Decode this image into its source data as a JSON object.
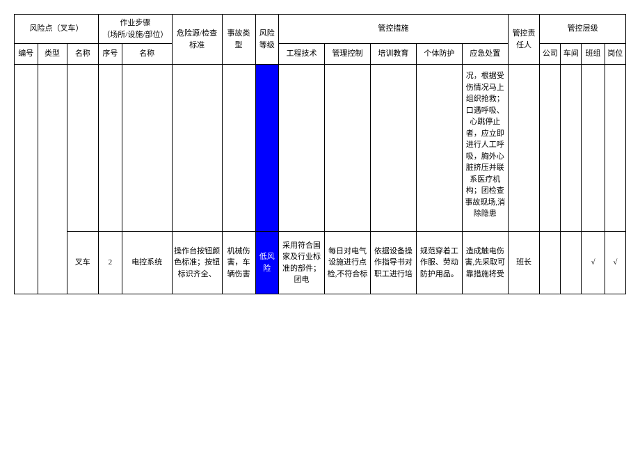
{
  "headers": {
    "riskPoint": "风险点（叉车）",
    "step": "作业步骤\n（场所/设施/部位）",
    "hazard": "危险源/检查标准",
    "accident": "事故类型",
    "riskLevel": "风险等级",
    "controls": "管控措施",
    "responsible": "管控责任人",
    "controlLevel": "管控层级",
    "no": "编号",
    "type": "类型",
    "name": "名称",
    "stepNo": "序号",
    "stepName": "名称",
    "eng": "工程技术",
    "mgmt": "管理控制",
    "train": "培训教育",
    "ppe": "个体防护",
    "emerg": "应急处置",
    "company": "公司",
    "workshop": "车间",
    "team": "班组",
    "post": "岗位"
  },
  "row1": {
    "emerg": "况，根据受伤情况马上组织抢救；口遇呼吸、心跳停止者，应立即进行人工呼吸，胸外心脏挤压并联系医疗机构；团检查事故现场,消除隐患"
  },
  "row2": {
    "name": "叉车",
    "stepNo": "2",
    "stepName": "电控系统",
    "hazard": "操作台按钮颜色标准；按钮标识齐全、",
    "accident": "机械伤害，车辆伤害",
    "riskLevel": "低风险",
    "eng": "采用符合国家及行业标准的部件；团电",
    "mgmt": "每日对电气设施进行点检,不符合标",
    "train": "依据设备操作指导书对职工进行培",
    "ppe": "规范穿着工作服、劳动防护用品。",
    "emerg": "造成触电伤害,先采取可靠措施将受",
    "responsible": "班长",
    "team": "√",
    "post": "√"
  },
  "colors": {
    "riskBg": "#0000ff",
    "riskText": "#ffffff",
    "border": "#000000",
    "background": "#ffffff"
  }
}
